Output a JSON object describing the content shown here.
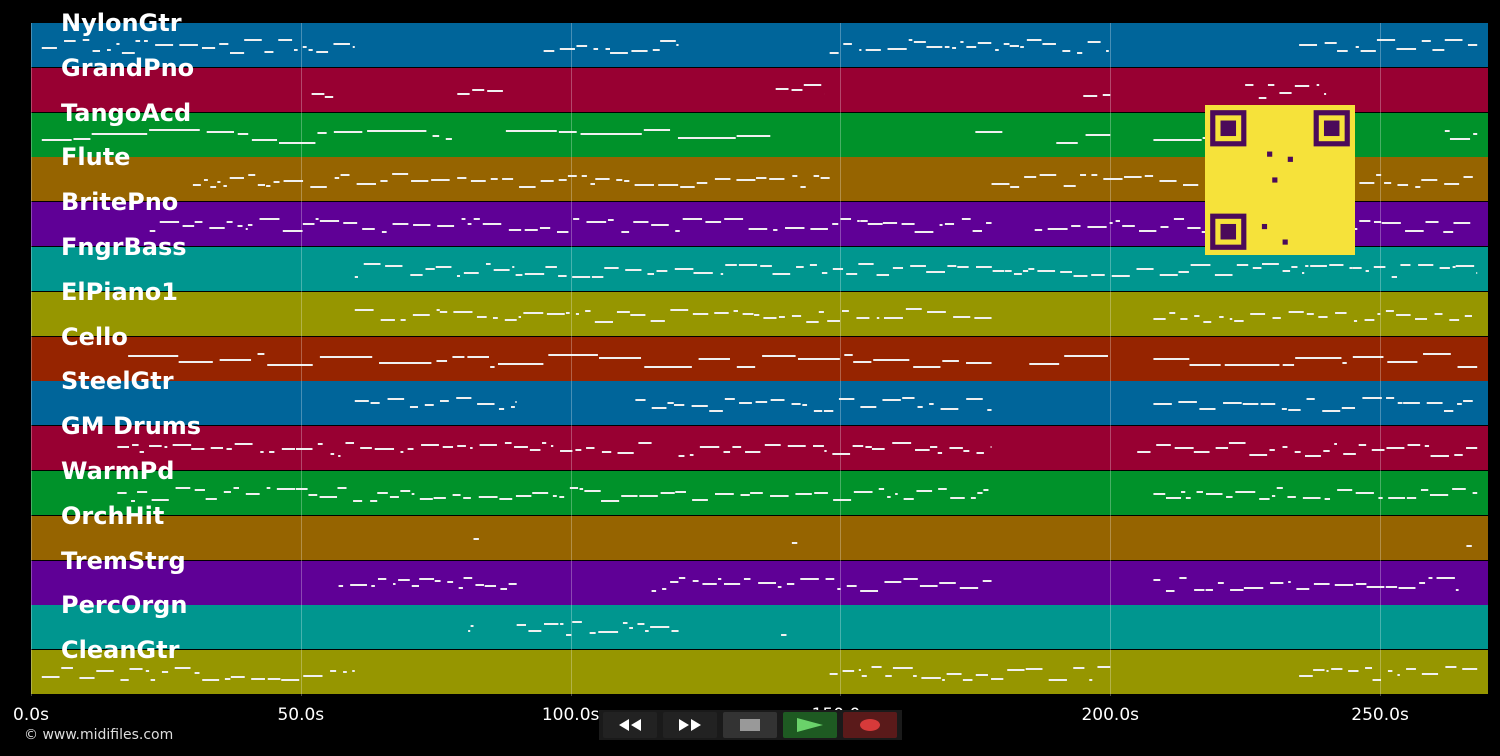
{
  "app": {
    "copyright": "© www.midifiles.com"
  },
  "tracks": [
    {
      "label": "NylonGtr",
      "color": "#00659a"
    },
    {
      "label": "GrandPno",
      "color": "#980032"
    },
    {
      "label": "TangoAcd",
      "color": "#00922a"
    },
    {
      "label": "Flute",
      "color": "#966400"
    },
    {
      "label": "BritePno",
      "color": "#5f0096"
    },
    {
      "label": "FngrBass",
      "color": "#00968f"
    },
    {
      "label": "ElPiano1",
      "color": "#969600"
    },
    {
      "label": "Cello",
      "color": "#962400"
    },
    {
      "label": "SteelGtr",
      "color": "#00659a"
    },
    {
      "label": "GM Drums",
      "color": "#980032"
    },
    {
      "label": "WarmPd",
      "color": "#00922a"
    },
    {
      "label": "OrchHit",
      "color": "#966400"
    },
    {
      "label": "TremStrg",
      "color": "#5f0096"
    },
    {
      "label": "PercOrgn",
      "color": "#00968f"
    },
    {
      "label": "CleanGtr",
      "color": "#969600"
    }
  ],
  "timeline": {
    "max_seconds": 270,
    "ticks": [
      {
        "seconds": 0,
        "label": "0.0s"
      },
      {
        "seconds": 50,
        "label": "50.0s"
      },
      {
        "seconds": 100,
        "label": "100.0s"
      },
      {
        "seconds": 150,
        "label": "150.0s"
      },
      {
        "seconds": 200,
        "label": "200.0s"
      },
      {
        "seconds": 250,
        "label": "250.0s"
      }
    ]
  },
  "transport": {
    "buttons": [
      {
        "name": "rewind-button",
        "icon": "rewind-icon",
        "color": "#222"
      },
      {
        "name": "fast-forward-button",
        "icon": "fast-forward-icon",
        "color": "#222"
      },
      {
        "name": "stop-button",
        "icon": "stop-icon",
        "color": "#333"
      },
      {
        "name": "play-button",
        "icon": "play-icon",
        "color": "#1e5a22"
      },
      {
        "name": "record-button",
        "icon": "record-icon",
        "color": "#5a1a1a"
      }
    ]
  },
  "note_activity": [
    [
      [
        2,
        60
      ],
      [
        95,
        120
      ],
      [
        148,
        200
      ],
      [
        235,
        268
      ]
    ],
    [
      [
        52,
        56
      ],
      [
        79,
        88
      ],
      [
        138,
        147
      ],
      [
        195,
        200
      ],
      [
        225,
        240
      ]
    ],
    [
      [
        2,
        78
      ],
      [
        88,
        137
      ],
      [
        175,
        180
      ],
      [
        190,
        200
      ],
      [
        208,
        230
      ],
      [
        262,
        268
      ]
    ],
    [
      [
        30,
        148
      ],
      [
        178,
        268
      ]
    ],
    [
      [
        22,
        150
      ],
      [
        150,
        178
      ],
      [
        186,
        268
      ]
    ],
    [
      [
        60,
        268
      ]
    ],
    [
      [
        60,
        178
      ],
      [
        208,
        268
      ]
    ],
    [
      [
        18,
        178
      ],
      [
        185,
        200
      ],
      [
        208,
        268
      ]
    ],
    [
      [
        60,
        90
      ],
      [
        112,
        178
      ],
      [
        208,
        268
      ]
    ],
    [
      [
        16,
        115
      ],
      [
        120,
        178
      ],
      [
        205,
        268
      ]
    ],
    [
      [
        16,
        178
      ],
      [
        208,
        268
      ]
    ],
    [
      [
        82,
        83
      ],
      [
        141,
        142
      ],
      [
        266,
        267
      ]
    ],
    [
      [
        57,
        90
      ],
      [
        115,
        178
      ],
      [
        208,
        265
      ]
    ],
    [
      [
        81,
        82
      ],
      [
        90,
        120
      ],
      [
        139,
        140
      ]
    ],
    [
      [
        2,
        60
      ],
      [
        148,
        200
      ],
      [
        235,
        268
      ]
    ]
  ]
}
